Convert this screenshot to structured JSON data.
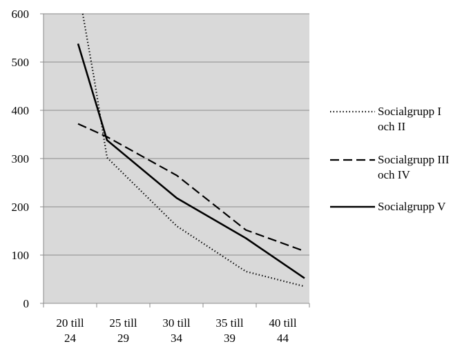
{
  "chart_data": {
    "type": "line",
    "title": "",
    "xlabel": "",
    "ylabel": "",
    "categories": [
      [
        "20 till",
        "24"
      ],
      [
        "25 till",
        "29"
      ],
      [
        "30 till",
        "34"
      ],
      [
        "35 till",
        "39"
      ],
      [
        "40 till",
        "44"
      ]
    ],
    "x": [
      0,
      0.92,
      2,
      3,
      4
    ],
    "ylim": [
      0,
      600
    ],
    "yticks": [
      0,
      100,
      200,
      300,
      400,
      500,
      600
    ],
    "grid": true,
    "plot_background": "#d9d9d9",
    "legend_position": "right",
    "series": [
      {
        "name": [
          "Socialgrupp I",
          "och II"
        ],
        "style": "dotted",
        "color": "#000000",
        "points": [
          {
            "x": 0.15,
            "y": 600
          },
          {
            "x": 0.5,
            "y": 470
          },
          {
            "x": 0.92,
            "y": 302
          },
          {
            "x": 2,
            "y": 160
          },
          {
            "x": 3,
            "y": 66
          },
          {
            "x": 4,
            "y": 35
          }
        ]
      },
      {
        "name": [
          "Socialgrupp III",
          "och IV"
        ],
        "style": "dashed",
        "color": "#000000",
        "points": [
          {
            "x": 0,
            "y": 372
          },
          {
            "x": 0.92,
            "y": 345
          },
          {
            "x": 2,
            "y": 265
          },
          {
            "x": 3,
            "y": 152
          },
          {
            "x": 4,
            "y": 108
          }
        ]
      },
      {
        "name": [
          "Socialgrupp V"
        ],
        "style": "solid",
        "color": "#000000",
        "points": [
          {
            "x": 0,
            "y": 538
          },
          {
            "x": 0.92,
            "y": 338
          },
          {
            "x": 2,
            "y": 218
          },
          {
            "x": 3,
            "y": 135
          },
          {
            "x": 4,
            "y": 52
          }
        ]
      }
    ]
  }
}
